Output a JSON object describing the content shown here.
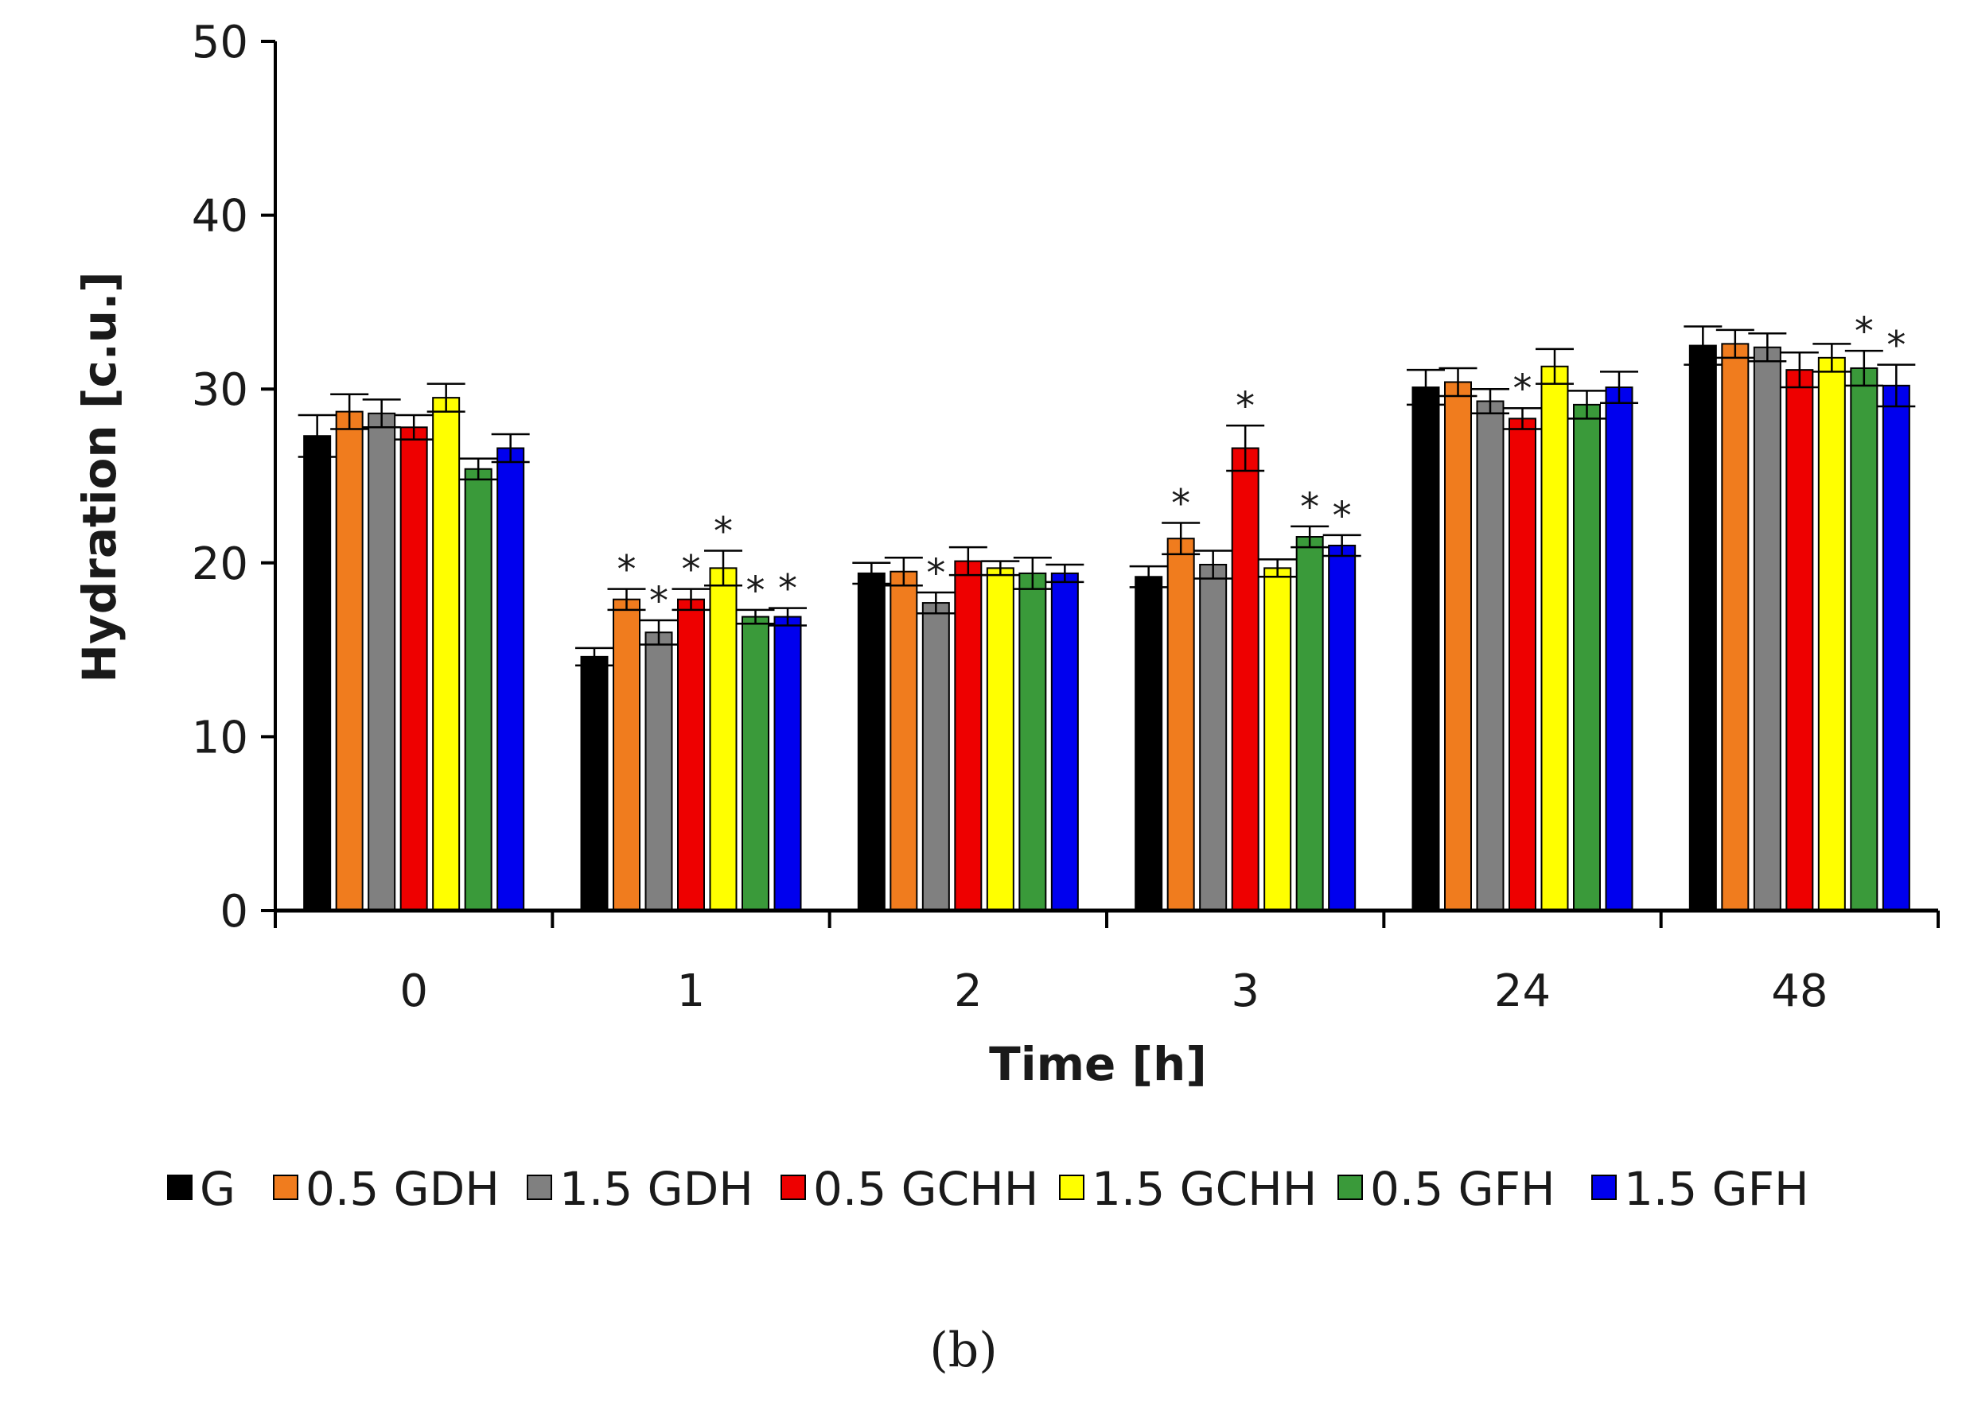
{
  "chart_data": {
    "type": "bar",
    "title": "",
    "xlabel": "Time [h]",
    "ylabel": "Hydration [c.u.]",
    "ylim": [
      0,
      50
    ],
    "yticks": [
      0,
      10,
      20,
      30,
      40,
      50
    ],
    "categories": [
      "0",
      "1",
      "2",
      "3",
      "24",
      "48"
    ],
    "legend_position": "bottom",
    "series": [
      {
        "name": "G",
        "color": "#000000",
        "values": [
          27.3,
          14.6,
          19.4,
          19.2,
          30.1,
          32.5
        ],
        "errors": [
          1.2,
          0.5,
          0.6,
          0.6,
          1.0,
          1.1
        ],
        "significant": [
          false,
          false,
          false,
          false,
          false,
          false
        ]
      },
      {
        "name": "0.5 GDH",
        "color": "#f07c1e",
        "values": [
          28.7,
          17.9,
          19.5,
          21.4,
          30.4,
          32.6
        ],
        "errors": [
          1.0,
          0.6,
          0.8,
          0.9,
          0.8,
          0.8
        ],
        "significant": [
          false,
          true,
          false,
          true,
          false,
          false
        ]
      },
      {
        "name": "1.5 GDH",
        "color": "#808080",
        "values": [
          28.6,
          16.0,
          17.7,
          19.9,
          29.3,
          32.4
        ],
        "errors": [
          0.8,
          0.7,
          0.6,
          0.8,
          0.7,
          0.8
        ],
        "significant": [
          false,
          true,
          true,
          false,
          false,
          false
        ]
      },
      {
        "name": "0.5 GCHH",
        "color": "#ee0000",
        "values": [
          27.8,
          17.9,
          20.1,
          26.6,
          28.3,
          31.1
        ],
        "errors": [
          0.7,
          0.6,
          0.8,
          1.3,
          0.6,
          1.0
        ],
        "significant": [
          false,
          true,
          false,
          true,
          true,
          false
        ]
      },
      {
        "name": "1.5 GCHH",
        "color": "#ffff00",
        "values": [
          29.5,
          19.7,
          19.7,
          19.7,
          31.3,
          31.8
        ],
        "errors": [
          0.8,
          1.0,
          0.4,
          0.5,
          1.0,
          0.8
        ],
        "significant": [
          false,
          true,
          false,
          false,
          false,
          false
        ]
      },
      {
        "name": "0.5 GFH",
        "color": "#3a9a3a",
        "values": [
          25.4,
          16.9,
          19.4,
          21.5,
          29.1,
          31.2
        ],
        "errors": [
          0.6,
          0.4,
          0.9,
          0.6,
          0.8,
          1.0
        ],
        "significant": [
          false,
          true,
          false,
          true,
          false,
          true
        ]
      },
      {
        "name": "1.5 GFH",
        "color": "#0000ee",
        "values": [
          26.6,
          16.9,
          19.4,
          21.0,
          30.1,
          30.2
        ],
        "errors": [
          0.8,
          0.5,
          0.5,
          0.6,
          0.9,
          1.2
        ],
        "significant": [
          false,
          true,
          false,
          true,
          false,
          true
        ]
      }
    ],
    "significance_marker": "*",
    "panel_label": "(b)"
  }
}
